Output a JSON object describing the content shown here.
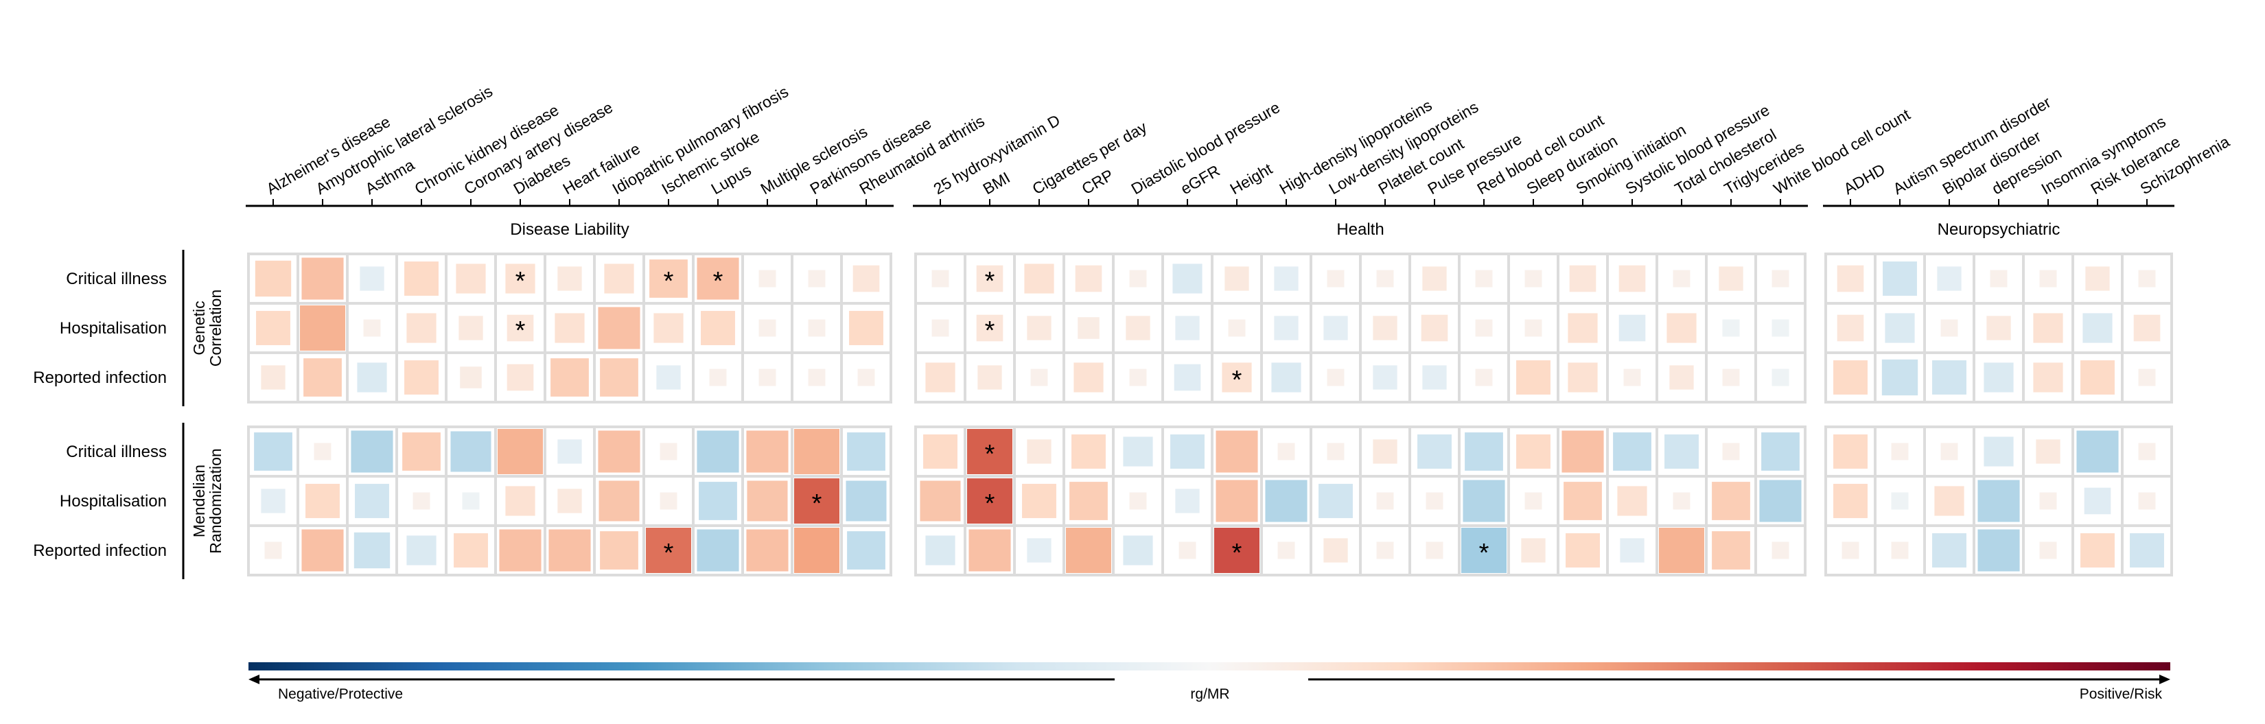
{
  "chart_data": {
    "type": "heatmap",
    "value_scale": [
      -1,
      1
    ],
    "star_marks_significance": true,
    "colorbar": {
      "label": "rg/MR",
      "left_label": "Negative/Protective",
      "right_label": "Positive/Risk",
      "colors": [
        "#053061",
        "#2166ac",
        "#4393c3",
        "#92c5de",
        "#d1e5f0",
        "#f7f7f7",
        "#fddbc7",
        "#f4a582",
        "#d6604d",
        "#b2182b",
        "#67001f"
      ]
    },
    "row_groups": [
      {
        "label_lines": [
          "Genetic",
          "Correlation"
        ],
        "rows": [
          "Critical illness",
          "Hospitalisation",
          "Reported infection"
        ]
      },
      {
        "label_lines": [
          "Mendelian",
          "Randomization"
        ],
        "rows": [
          "Critical illness",
          "Hospitalisation",
          "Reported infection"
        ]
      }
    ],
    "column_groups": [
      {
        "label": "Disease Liability",
        "columns": [
          "Alzheimer's disease",
          "Amyotrophic lateral sclerosis",
          "Asthma",
          "Chronic kidney disease",
          "Coronary artery disease",
          "Diabetes",
          "Heart failure",
          "Idiopathic pulmonary fibrosis",
          "Ischemic stroke",
          "Lupus",
          "Multiple sclerosis",
          "Parkinsons disease",
          "Rheumatoid arthritis"
        ],
        "values": [
          [
            0.22,
            0.3,
            -0.1,
            0.2,
            0.15,
            0.15,
            0.1,
            0.15,
            0.25,
            0.3,
            0.05,
            0.05,
            0.12
          ],
          [
            0.2,
            0.35,
            0.05,
            0.15,
            0.1,
            0.12,
            0.15,
            0.3,
            0.15,
            0.2,
            0.05,
            0.05,
            0.2
          ],
          [
            0.1,
            0.25,
            -0.15,
            0.2,
            0.08,
            0.12,
            0.25,
            0.25,
            -0.1,
            0.05,
            0.05,
            0.05,
            0.05
          ],
          [
            -0.25,
            0.05,
            -0.3,
            0.25,
            -0.28,
            0.35,
            -0.1,
            0.3,
            0.05,
            -0.3,
            0.3,
            0.35,
            -0.25
          ],
          [
            -0.1,
            0.2,
            -0.2,
            0.05,
            -0.05,
            0.15,
            0.1,
            0.28,
            0.05,
            -0.25,
            0.28,
            0.6,
            -0.28
          ],
          [
            0.05,
            0.3,
            -0.22,
            -0.15,
            0.2,
            0.3,
            0.3,
            0.25,
            0.55,
            -0.3,
            0.3,
            0.4,
            -0.25
          ]
        ],
        "significant": [
          [
            false,
            false,
            false,
            false,
            false,
            true,
            false,
            false,
            true,
            true,
            false,
            false,
            false
          ],
          [
            false,
            false,
            false,
            false,
            false,
            true,
            false,
            false,
            false,
            false,
            false,
            false,
            false
          ],
          [
            false,
            false,
            false,
            false,
            false,
            false,
            false,
            false,
            false,
            false,
            false,
            false,
            false
          ],
          [
            false,
            false,
            false,
            false,
            false,
            false,
            false,
            false,
            false,
            false,
            false,
            false,
            false
          ],
          [
            false,
            false,
            false,
            false,
            false,
            false,
            false,
            false,
            false,
            false,
            false,
            true,
            false
          ],
          [
            false,
            false,
            false,
            false,
            false,
            false,
            false,
            false,
            true,
            false,
            false,
            false,
            false
          ]
        ]
      },
      {
        "label": "Health",
        "columns": [
          "25 hydroxyvitamin D",
          "BMI",
          "Cigarettes per day",
          "CRP",
          "Diastolic blood pressure",
          "eGFR",
          "Height",
          "High-density lipoproteins",
          "Low-density lipoproteins",
          "Platelet count",
          "Pulse pressure",
          "Red blood cell count",
          "Sleep duration",
          "Smoking initiation",
          "Systolic blood pressure",
          "Total cholesterol",
          "Triglycerides",
          "White blood cell count"
        ],
        "values": [
          [
            0.05,
            0.12,
            0.15,
            0.12,
            0.05,
            -0.15,
            0.1,
            -0.1,
            0.05,
            0.05,
            0.1,
            0.05,
            0.05,
            0.12,
            0.12,
            0.05,
            0.1,
            0.05
          ],
          [
            0.05,
            0.12,
            0.1,
            0.08,
            0.1,
            -0.1,
            0.05,
            -0.1,
            -0.1,
            0.1,
            0.12,
            0.05,
            0.05,
            0.15,
            -0.12,
            0.15,
            -0.05,
            -0.05
          ],
          [
            0.15,
            0.1,
            0.05,
            0.15,
            0.05,
            -0.12,
            0.15,
            -0.15,
            0.05,
            -0.1,
            -0.1,
            0.05,
            0.2,
            0.15,
            0.05,
            0.1,
            0.05,
            -0.05
          ],
          [
            0.2,
            0.6,
            0.1,
            0.2,
            -0.15,
            -0.2,
            0.3,
            0.05,
            0.05,
            0.1,
            -0.2,
            -0.25,
            0.2,
            0.3,
            -0.25,
            -0.2,
            0.05,
            -0.25
          ],
          [
            0.28,
            0.62,
            0.2,
            0.25,
            0.05,
            -0.1,
            0.3,
            -0.3,
            -0.2,
            0.05,
            0.05,
            -0.3,
            0.05,
            0.25,
            0.15,
            0.05,
            0.25,
            -0.3
          ],
          [
            -0.15,
            0.3,
            -0.1,
            0.35,
            -0.15,
            0.05,
            0.65,
            0.05,
            0.1,
            0.05,
            0.05,
            -0.35,
            0.1,
            0.2,
            -0.1,
            0.35,
            0.25,
            0.05
          ]
        ],
        "significant": [
          [
            false,
            true,
            false,
            false,
            false,
            false,
            false,
            false,
            false,
            false,
            false,
            false,
            false,
            false,
            false,
            false,
            false,
            false
          ],
          [
            false,
            true,
            false,
            false,
            false,
            false,
            false,
            false,
            false,
            false,
            false,
            false,
            false,
            false,
            false,
            false,
            false,
            false
          ],
          [
            false,
            false,
            false,
            false,
            false,
            false,
            true,
            false,
            false,
            false,
            false,
            false,
            false,
            false,
            false,
            false,
            false,
            false
          ],
          [
            false,
            true,
            false,
            false,
            false,
            false,
            false,
            false,
            false,
            false,
            false,
            false,
            false,
            false,
            false,
            false,
            false,
            false
          ],
          [
            false,
            true,
            false,
            false,
            false,
            false,
            false,
            false,
            false,
            false,
            false,
            false,
            false,
            false,
            false,
            false,
            false,
            false
          ],
          [
            false,
            false,
            false,
            false,
            false,
            false,
            true,
            false,
            false,
            false,
            false,
            true,
            false,
            false,
            false,
            false,
            false,
            false
          ]
        ]
      },
      {
        "label": "Neuropsychiatric",
        "columns": [
          "ADHD",
          "Autism spectrum disorder",
          "Bipolar disorder",
          "depression",
          "Insomnia symptoms",
          "Risk tolerance",
          "Schizophrenia"
        ],
        "values": [
          [
            0.12,
            -0.2,
            -0.1,
            0.05,
            0.05,
            0.1,
            0.05
          ],
          [
            0.12,
            -0.15,
            0.05,
            0.1,
            0.15,
            -0.15,
            0.12
          ],
          [
            0.2,
            -0.22,
            -0.2,
            -0.15,
            0.15,
            0.2,
            0.05
          ],
          [
            0.2,
            0.05,
            0.05,
            -0.15,
            0.1,
            -0.3,
            0.05
          ],
          [
            0.2,
            -0.05,
            0.15,
            -0.3,
            0.05,
            -0.12,
            0.05
          ],
          [
            0.05,
            0.05,
            -0.2,
            -0.3,
            0.05,
            0.2,
            -0.2
          ]
        ],
        "significant": [
          [
            false,
            false,
            false,
            false,
            false,
            false,
            false
          ],
          [
            false,
            false,
            false,
            false,
            false,
            false,
            false
          ],
          [
            false,
            false,
            false,
            false,
            false,
            false,
            false
          ],
          [
            false,
            false,
            false,
            false,
            false,
            false,
            false
          ],
          [
            false,
            false,
            false,
            false,
            false,
            false,
            false
          ],
          [
            false,
            false,
            false,
            false,
            false,
            false,
            false
          ]
        ]
      }
    ]
  }
}
